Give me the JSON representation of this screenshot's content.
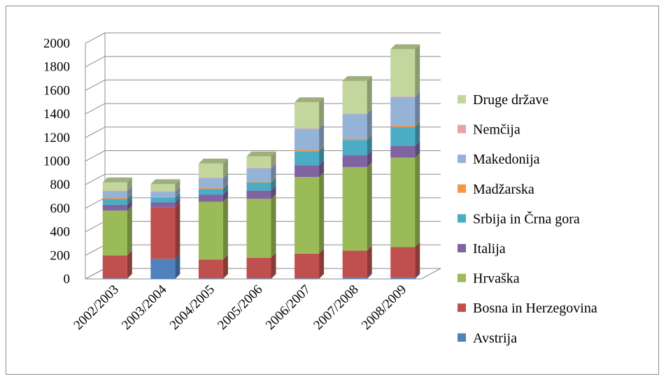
{
  "chart_data": {
    "type": "bar",
    "stacked": true,
    "three_d": true,
    "categories": [
      "2002/2003",
      "2003/2004",
      "2004/2005",
      "2005/2006",
      "2006/2007",
      "2007/2008",
      "2008/2009"
    ],
    "ylim": [
      0,
      2000
    ],
    "yticks": [
      0,
      200,
      400,
      600,
      800,
      1000,
      1200,
      1400,
      1600,
      1800,
      2000
    ],
    "grid": true,
    "legend_position": "right",
    "series": [
      {
        "name": "Avstrija",
        "color": "#4f81bd",
        "values": [
          5,
          170,
          5,
          5,
          5,
          10,
          10
        ]
      },
      {
        "name": "Bosna in Herzegovina",
        "color": "#c0504d",
        "values": [
          195,
          440,
          160,
          175,
          210,
          230,
          260
        ]
      },
      {
        "name": "Hrvaška",
        "color": "#9bbb59",
        "values": [
          380,
          0,
          490,
          500,
          650,
          710,
          760
        ]
      },
      {
        "name": "Italija",
        "color": "#8064a2",
        "values": [
          50,
          40,
          60,
          70,
          100,
          100,
          100
        ]
      },
      {
        "name": "Srbija in Črna gora",
        "color": "#4bacc6",
        "values": [
          50,
          40,
          50,
          70,
          120,
          130,
          160
        ]
      },
      {
        "name": "Madžarska",
        "color": "#f79646",
        "values": [
          10,
          5,
          10,
          10,
          10,
          10,
          15
        ]
      },
      {
        "name": "Makedonija",
        "color": "#95b3d7",
        "values": [
          55,
          45,
          80,
          110,
          180,
          210,
          240
        ]
      },
      {
        "name": "Nemčija",
        "color": "#e6a5a3",
        "values": [
          5,
          5,
          5,
          5,
          5,
          5,
          5
        ]
      },
      {
        "name": "Druge države",
        "color": "#c3d69b",
        "values": [
          70,
          60,
          120,
          95,
          220,
          275,
          400
        ]
      }
    ]
  }
}
